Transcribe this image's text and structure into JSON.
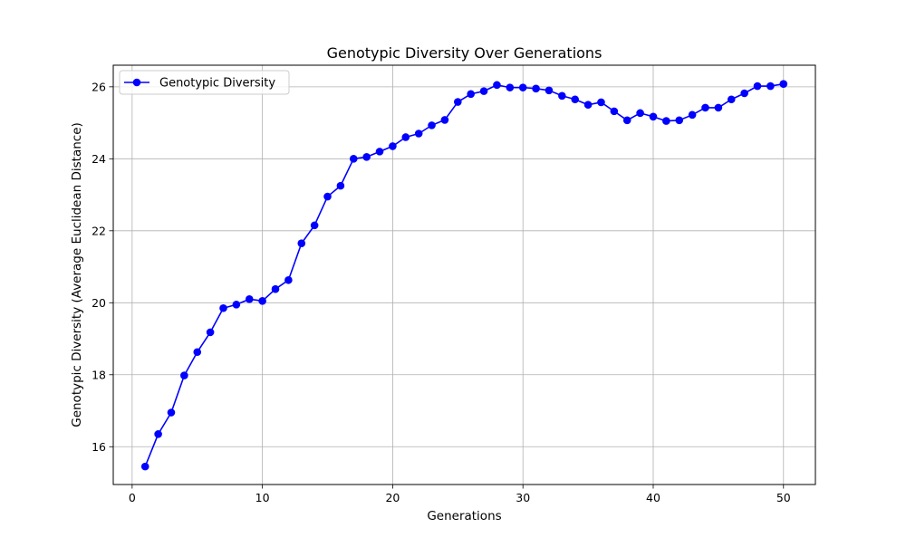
{
  "chart_data": {
    "type": "line",
    "title": "Genotypic Diversity Over Generations",
    "xlabel": "Generations",
    "ylabel": "Genotypic Diversity (Average Euclidean Distance)",
    "xlim": [
      -1.45,
      52.45
    ],
    "ylim": [
      14.95,
      26.6
    ],
    "xticks": [
      0,
      10,
      20,
      30,
      40,
      50
    ],
    "yticks": [
      16,
      18,
      20,
      22,
      24,
      26
    ],
    "grid": true,
    "legend_position": "top-left",
    "series": [
      {
        "name": "Genotypic Diversity",
        "color": "#0000ff",
        "marker": "circle",
        "x": [
          1,
          2,
          3,
          4,
          5,
          6,
          7,
          8,
          9,
          10,
          11,
          12,
          13,
          14,
          15,
          16,
          17,
          18,
          19,
          20,
          21,
          22,
          23,
          24,
          25,
          26,
          27,
          28,
          29,
          30,
          31,
          32,
          33,
          34,
          35,
          36,
          37,
          38,
          39,
          40,
          41,
          42,
          43,
          44,
          45,
          46,
          47,
          48,
          49,
          50
        ],
        "values": [
          15.45,
          16.35,
          16.95,
          17.98,
          18.63,
          19.18,
          19.85,
          19.95,
          20.1,
          20.05,
          20.38,
          20.63,
          21.65,
          22.15,
          22.95,
          23.25,
          24.0,
          24.05,
          24.2,
          24.35,
          24.6,
          24.7,
          24.93,
          25.08,
          25.58,
          25.8,
          25.88,
          26.05,
          25.98,
          25.98,
          25.95,
          25.9,
          25.75,
          25.65,
          25.5,
          25.57,
          25.32,
          25.07,
          25.27,
          25.17,
          25.05,
          25.07,
          25.22,
          25.42,
          25.42,
          25.65,
          25.82,
          26.02,
          26.02,
          26.08
        ]
      }
    ]
  }
}
